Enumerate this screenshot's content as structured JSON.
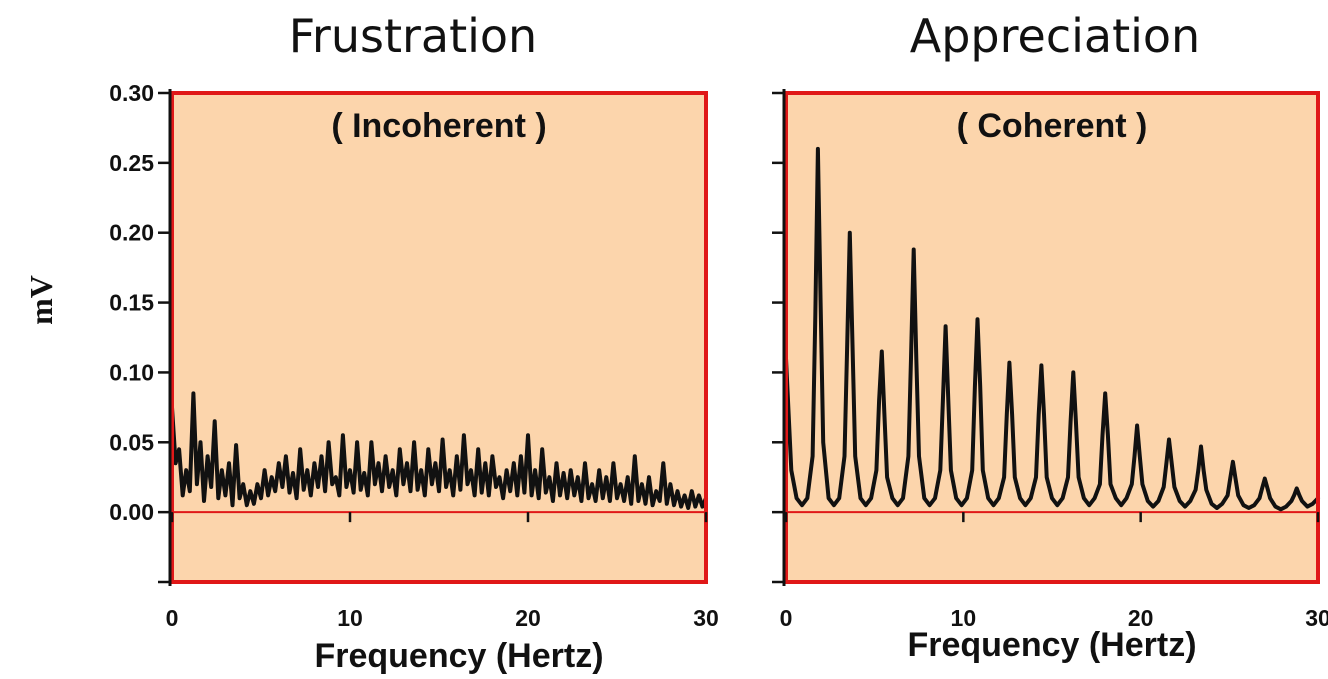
{
  "colors": {
    "panel_fill": "#fcd5ac",
    "panel_border": "#e01818",
    "zero_line": "#e01818",
    "trace": "#111111",
    "axis": "#111111"
  },
  "ylabel": "mV",
  "chart_data": [
    {
      "type": "line",
      "title": "Frustration",
      "annotation": "( Incoherent )",
      "xlabel": "Frequency (Hertz)",
      "ylabel": "mV",
      "xlim": [
        0,
        30
      ],
      "ylim": [
        -0.05,
        0.3
      ],
      "x_ticks": [
        "0",
        "10",
        "20",
        "30"
      ],
      "y_ticks": [
        "0.30",
        "0.25",
        "0.20",
        "0.15",
        "0.10",
        "0.05",
        "0.00"
      ],
      "grid": false,
      "series": [
        {
          "x": [
            0,
            0.2,
            0.4,
            0.6,
            0.8,
            1.0,
            1.2,
            1.4,
            1.6,
            1.8,
            2.0,
            2.2,
            2.4,
            2.6,
            2.8,
            3.0,
            3.2,
            3.4,
            3.6,
            3.8,
            4.0,
            4.2,
            4.4,
            4.6,
            4.8,
            5.0,
            5.2,
            5.4,
            5.6,
            5.8,
            6.0,
            6.2,
            6.4,
            6.6,
            6.8,
            7.0,
            7.2,
            7.4,
            7.6,
            7.8,
            8.0,
            8.2,
            8.4,
            8.6,
            8.8,
            9.0,
            9.2,
            9.4,
            9.6,
            9.8,
            10.0,
            10.2,
            10.4,
            10.6,
            10.8,
            11.0,
            11.2,
            11.4,
            11.6,
            11.8,
            12.0,
            12.2,
            12.4,
            12.6,
            12.8,
            13.0,
            13.2,
            13.4,
            13.6,
            13.8,
            14.0,
            14.2,
            14.4,
            14.6,
            14.8,
            15.0,
            15.2,
            15.4,
            15.6,
            15.8,
            16.0,
            16.2,
            16.4,
            16.6,
            16.8,
            17.0,
            17.2,
            17.4,
            17.6,
            17.8,
            18.0,
            18.2,
            18.4,
            18.6,
            18.8,
            19.0,
            19.2,
            19.4,
            19.6,
            19.8,
            20.0,
            20.2,
            20.4,
            20.6,
            20.8,
            21.0,
            21.2,
            21.4,
            21.6,
            21.8,
            22.0,
            22.2,
            22.4,
            22.6,
            22.8,
            23.0,
            23.2,
            23.4,
            23.6,
            23.8,
            24.0,
            24.2,
            24.4,
            24.6,
            24.8,
            25.0,
            25.2,
            25.4,
            25.6,
            25.8,
            26.0,
            26.2,
            26.4,
            26.6,
            26.8,
            27.0,
            27.2,
            27.4,
            27.6,
            27.8,
            28.0,
            28.2,
            28.4,
            28.6,
            28.8,
            29.0,
            29.2,
            29.4,
            29.6,
            29.8,
            30.0
          ],
          "y": [
            0.075,
            0.035,
            0.045,
            0.012,
            0.03,
            0.015,
            0.085,
            0.02,
            0.05,
            0.008,
            0.04,
            0.018,
            0.065,
            0.01,
            0.03,
            0.012,
            0.035,
            0.005,
            0.048,
            0.01,
            0.02,
            0.005,
            0.015,
            0.006,
            0.02,
            0.01,
            0.03,
            0.012,
            0.025,
            0.015,
            0.035,
            0.018,
            0.04,
            0.014,
            0.028,
            0.01,
            0.045,
            0.016,
            0.03,
            0.012,
            0.035,
            0.018,
            0.04,
            0.015,
            0.05,
            0.02,
            0.025,
            0.012,
            0.055,
            0.018,
            0.03,
            0.014,
            0.05,
            0.016,
            0.028,
            0.012,
            0.05,
            0.02,
            0.035,
            0.015,
            0.04,
            0.018,
            0.03,
            0.012,
            0.045,
            0.02,
            0.035,
            0.015,
            0.05,
            0.016,
            0.03,
            0.012,
            0.045,
            0.02,
            0.035,
            0.015,
            0.052,
            0.018,
            0.03,
            0.012,
            0.04,
            0.016,
            0.055,
            0.02,
            0.03,
            0.012,
            0.045,
            0.014,
            0.035,
            0.012,
            0.04,
            0.018,
            0.025,
            0.01,
            0.03,
            0.015,
            0.035,
            0.012,
            0.04,
            0.014,
            0.055,
            0.012,
            0.03,
            0.01,
            0.045,
            0.014,
            0.025,
            0.008,
            0.035,
            0.012,
            0.028,
            0.01,
            0.03,
            0.012,
            0.025,
            0.008,
            0.035,
            0.01,
            0.02,
            0.008,
            0.03,
            0.01,
            0.025,
            0.008,
            0.035,
            0.01,
            0.02,
            0.008,
            0.025,
            0.006,
            0.04,
            0.008,
            0.02,
            0.006,
            0.025,
            0.005,
            0.015,
            0.008,
            0.035,
            0.006,
            0.02,
            0.005,
            0.015,
            0.004,
            0.012,
            0.003,
            0.015,
            0.004,
            0.012,
            0.004,
            0.01
          ]
        }
      ]
    },
    {
      "type": "line",
      "title": "Appreciation",
      "annotation": "( Coherent )",
      "xlabel": "Frequency (Hertz)",
      "ylabel": "mV",
      "xlim": [
        0,
        30
      ],
      "ylim": [
        -0.05,
        0.3
      ],
      "x_ticks": [
        "0",
        "10",
        "20",
        "30"
      ],
      "y_ticks": [],
      "grid": false,
      "series": [
        {
          "x": [
            0,
            0.3,
            0.6,
            0.9,
            1.2,
            1.5,
            1.65,
            1.8,
            1.95,
            2.1,
            2.4,
            2.7,
            3.0,
            3.3,
            3.45,
            3.6,
            3.75,
            3.9,
            4.2,
            4.5,
            4.8,
            5.1,
            5.25,
            5.4,
            5.55,
            5.7,
            6.0,
            6.3,
            6.6,
            6.9,
            7.05,
            7.2,
            7.35,
            7.5,
            7.8,
            8.1,
            8.4,
            8.7,
            8.85,
            9.0,
            9.15,
            9.3,
            9.6,
            9.9,
            10.2,
            10.5,
            10.65,
            10.8,
            10.95,
            11.1,
            11.4,
            11.7,
            12.0,
            12.3,
            12.45,
            12.6,
            12.75,
            12.9,
            13.2,
            13.5,
            13.8,
            14.1,
            14.25,
            14.4,
            14.55,
            14.7,
            15.0,
            15.3,
            15.6,
            15.9,
            16.05,
            16.2,
            16.35,
            16.5,
            16.8,
            17.1,
            17.4,
            17.7,
            17.85,
            18.0,
            18.15,
            18.3,
            18.6,
            18.9,
            19.2,
            19.5,
            19.65,
            19.8,
            19.95,
            20.1,
            20.4,
            20.7,
            21.0,
            21.3,
            21.45,
            21.6,
            21.75,
            21.9,
            22.2,
            22.5,
            22.8,
            23.1,
            23.25,
            23.4,
            23.55,
            23.7,
            24.0,
            24.3,
            24.6,
            24.9,
            25.05,
            25.2,
            25.35,
            25.5,
            25.8,
            26.1,
            26.4,
            26.7,
            26.85,
            27.0,
            27.15,
            27.3,
            27.6,
            27.9,
            28.2,
            28.5,
            28.65,
            28.8,
            28.95,
            29.1,
            29.4,
            29.7,
            30.0
          ],
          "y": [
            0.11,
            0.03,
            0.01,
            0.005,
            0.01,
            0.04,
            0.14,
            0.26,
            0.15,
            0.05,
            0.01,
            0.005,
            0.01,
            0.04,
            0.12,
            0.2,
            0.12,
            0.04,
            0.01,
            0.005,
            0.01,
            0.03,
            0.08,
            0.115,
            0.07,
            0.025,
            0.01,
            0.005,
            0.01,
            0.04,
            0.11,
            0.188,
            0.11,
            0.04,
            0.01,
            0.005,
            0.01,
            0.03,
            0.08,
            0.133,
            0.08,
            0.03,
            0.01,
            0.005,
            0.01,
            0.03,
            0.09,
            0.138,
            0.09,
            0.03,
            0.01,
            0.005,
            0.01,
            0.025,
            0.07,
            0.107,
            0.07,
            0.025,
            0.01,
            0.005,
            0.01,
            0.025,
            0.07,
            0.105,
            0.07,
            0.025,
            0.01,
            0.005,
            0.01,
            0.025,
            0.065,
            0.1,
            0.065,
            0.025,
            0.01,
            0.005,
            0.01,
            0.02,
            0.055,
            0.085,
            0.055,
            0.02,
            0.01,
            0.005,
            0.01,
            0.02,
            0.04,
            0.062,
            0.04,
            0.02,
            0.008,
            0.004,
            0.008,
            0.018,
            0.035,
            0.052,
            0.035,
            0.018,
            0.008,
            0.004,
            0.008,
            0.016,
            0.03,
            0.047,
            0.03,
            0.016,
            0.006,
            0.003,
            0.006,
            0.012,
            0.024,
            0.036,
            0.024,
            0.012,
            0.005,
            0.003,
            0.005,
            0.01,
            0.017,
            0.024,
            0.017,
            0.01,
            0.004,
            0.002,
            0.004,
            0.008,
            0.012,
            0.017,
            0.012,
            0.008,
            0.004,
            0.006,
            0.01
          ]
        }
      ]
    }
  ]
}
